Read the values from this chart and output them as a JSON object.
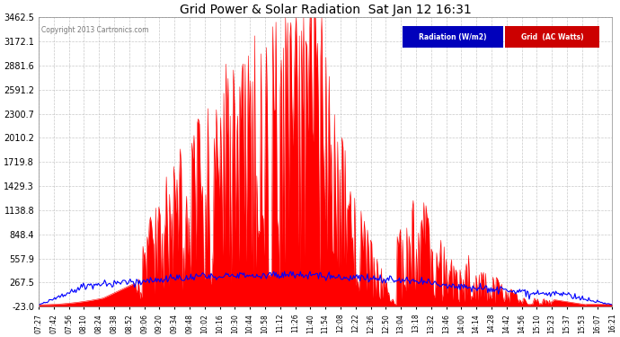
{
  "title": "Grid Power & Solar Radiation  Sat Jan 12 16:31",
  "copyright": "Copyright 2013 Cartronics.com",
  "background_color": "#ffffff",
  "plot_bg_color": "#ffffff",
  "grid_color": "#aaaaaa",
  "y_tick_labels": [
    "3462.5",
    "3172.1",
    "2881.6",
    "2591.2",
    "2300.7",
    "2010.2",
    "1719.8",
    "1429.3",
    "1138.8",
    "848.4",
    "557.9",
    "267.5",
    "-23.0"
  ],
  "y_tick_values": [
    3462.5,
    3172.1,
    2881.6,
    2591.2,
    2300.7,
    2010.2,
    1719.8,
    1429.3,
    1138.8,
    848.4,
    557.9,
    267.5,
    -23.0
  ],
  "ylim": [
    -23.0,
    3462.5
  ],
  "x_tick_labels": [
    "07:27",
    "07:42",
    "07:56",
    "08:10",
    "08:24",
    "08:38",
    "08:52",
    "09:06",
    "09:20",
    "09:34",
    "09:48",
    "10:02",
    "10:16",
    "10:30",
    "10:44",
    "10:58",
    "11:12",
    "11:26",
    "11:40",
    "11:54",
    "12:08",
    "12:22",
    "12:36",
    "12:50",
    "13:04",
    "13:18",
    "13:32",
    "13:46",
    "14:00",
    "14:14",
    "14:28",
    "14:42",
    "14:56",
    "15:10",
    "15:23",
    "15:37",
    "15:53",
    "16:07",
    "16:21"
  ],
  "red_color": "#ff0000",
  "blue_color": "#0000ff",
  "legend_radiation_bg": "#0000bb",
  "legend_grid_bg": "#cc0000",
  "legend_text_color": "#ffffff"
}
